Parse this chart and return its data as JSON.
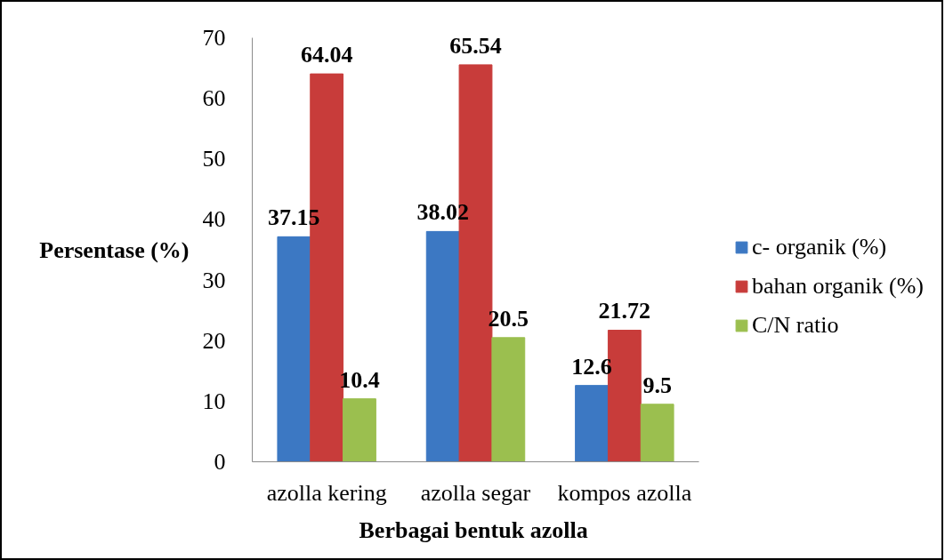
{
  "chart_data": {
    "type": "bar",
    "xlabel": "Berbagai bentuk azolla",
    "ylabel": "Persentase (%)",
    "categories": [
      "azolla kering",
      "azolla segar",
      "kompos azolla"
    ],
    "series": [
      {
        "name": "c- organik (%)",
        "color": "#3c78c3",
        "values": [
          37.15,
          38.02,
          12.6
        ]
      },
      {
        "name": "bahan organik (%)",
        "color": "#c83c3a",
        "values": [
          64.04,
          65.54,
          21.72
        ]
      },
      {
        "name": "C/N ratio",
        "color": "#9bbf4f",
        "values": [
          10.4,
          20.5,
          9.5
        ]
      }
    ],
    "ylim": [
      0,
      70
    ],
    "yticks": [
      0,
      10,
      20,
      30,
      40,
      50,
      60,
      70
    ],
    "grid": false,
    "legend": "right",
    "data_labels": true
  }
}
